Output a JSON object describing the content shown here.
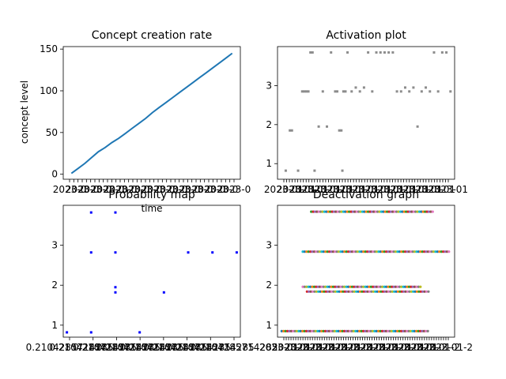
{
  "charts": [
    {
      "id": "creation",
      "type": "line",
      "title": "Concept creation rate",
      "xlabel": "time",
      "ylabel": "concept level",
      "yticks": [
        0,
        50,
        100,
        150
      ],
      "ylim": [
        -6,
        153
      ],
      "x_tick_labels_overlapping": true,
      "x_tick_label_text": "2023-0",
      "series": [
        {
          "color": "#1f77b4",
          "points": [
            [
              0,
              1
            ],
            [
              5,
              7
            ],
            [
              10,
              13
            ],
            [
              15,
              20
            ],
            [
              20,
              27
            ],
            [
              25,
              32
            ],
            [
              30,
              38
            ],
            [
              35,
              43
            ],
            [
              40,
              49
            ],
            [
              45,
              55
            ],
            [
              50,
              61
            ],
            [
              55,
              67
            ],
            [
              60,
              74
            ],
            [
              65,
              80
            ],
            [
              70,
              86
            ],
            [
              75,
              92
            ],
            [
              80,
              98
            ],
            [
              85,
              104
            ],
            [
              90,
              110
            ],
            [
              95,
              116
            ],
            [
              100,
              122
            ],
            [
              105,
              128
            ],
            [
              110,
              134
            ],
            [
              115,
              140
            ],
            [
              119,
              145
            ]
          ]
        }
      ],
      "xlim": [
        -6,
        125
      ]
    },
    {
      "id": "activation",
      "type": "scatter",
      "title": "Activation plot",
      "yticks": [
        1,
        2,
        3
      ],
      "ylim": [
        0.6,
        4.0
      ],
      "x_tick_labels_overlapping": true,
      "x_tick_label_text": "2023-01",
      "color": "#8c8c8c",
      "points": [
        [
          2,
          0.82
        ],
        [
          8,
          0.82
        ],
        [
          4,
          1.85
        ],
        [
          5,
          1.85
        ],
        [
          10,
          2.85
        ],
        [
          11,
          2.85
        ],
        [
          12,
          2.85
        ],
        [
          13,
          2.85
        ],
        [
          14,
          3.85
        ],
        [
          15,
          3.85
        ],
        [
          16,
          0.82
        ],
        [
          18,
          1.95
        ],
        [
          20,
          2.85
        ],
        [
          22,
          1.95
        ],
        [
          24,
          3.85
        ],
        [
          26,
          2.85
        ],
        [
          27,
          2.85
        ],
        [
          28,
          1.85
        ],
        [
          29,
          1.85
        ],
        [
          29.5,
          0.82
        ],
        [
          30,
          2.85
        ],
        [
          31,
          2.85
        ],
        [
          32,
          3.85
        ],
        [
          34,
          2.85
        ],
        [
          36,
          2.95
        ],
        [
          38,
          2.85
        ],
        [
          40,
          2.95
        ],
        [
          42,
          3.85
        ],
        [
          44,
          2.85
        ],
        [
          46,
          3.85
        ],
        [
          48,
          3.85
        ],
        [
          50,
          3.85
        ],
        [
          52,
          3.85
        ],
        [
          54,
          3.85
        ],
        [
          56,
          2.85
        ],
        [
          58,
          2.85
        ],
        [
          60,
          2.95
        ],
        [
          62,
          2.85
        ],
        [
          64,
          2.95
        ],
        [
          66,
          1.95
        ],
        [
          68,
          2.85
        ],
        [
          70,
          2.95
        ],
        [
          72,
          2.85
        ],
        [
          74,
          3.85
        ],
        [
          76,
          2.85
        ],
        [
          78,
          3.85
        ],
        [
          80,
          3.85
        ],
        [
          82,
          2.85
        ]
      ],
      "xlim": [
        -2,
        84
      ]
    },
    {
      "id": "probability",
      "type": "scatter",
      "title": "Probability map",
      "yticks": [
        1,
        2,
        3
      ],
      "ylim": [
        0.7,
        4.0
      ],
      "x_tick_labels_overlapping": true,
      "x_tick_label_text": "0.2104285714285",
      "color": "#0000ff",
      "points": [
        [
          0,
          0.82
        ],
        [
          1,
          0.82
        ],
        [
          1,
          2.82
        ],
        [
          1,
          3.82
        ],
        [
          2,
          3.82
        ],
        [
          2,
          2.82
        ],
        [
          2,
          1.95
        ],
        [
          2,
          1.82
        ],
        [
          3,
          0.82
        ],
        [
          4,
          1.82
        ],
        [
          5,
          2.82
        ],
        [
          6,
          2.82
        ],
        [
          7,
          2.82
        ]
      ],
      "xlim": [
        -0.15,
        7.15
      ]
    },
    {
      "id": "deactivation",
      "type": "scatter",
      "title": "Deactivation graph",
      "yticks": [
        1,
        2,
        3
      ],
      "ylim": [
        0.7,
        4.0
      ],
      "x_tick_labels_overlapping": true,
      "x_tick_label_text": "2023-01-2",
      "colors": [
        "#1f77b4",
        "#ff7f0e",
        "#2ca02c",
        "#d62728",
        "#9467bd",
        "#8c564b",
        "#e377c2",
        "#7f7f7f",
        "#bcbd22",
        "#17becf"
      ],
      "rows": [
        {
          "y": 0.85,
          "x_from": 0,
          "x_to": 70
        },
        {
          "y": 1.84,
          "x_from": 12,
          "x_to": 70
        },
        {
          "y": 1.96,
          "x_from": 10,
          "x_to": 66
        },
        {
          "y": 2.84,
          "x_from": 10,
          "x_to": 80
        },
        {
          "y": 3.84,
          "x_from": 14,
          "x_to": 72
        }
      ],
      "xlim": [
        -2,
        82
      ]
    }
  ]
}
